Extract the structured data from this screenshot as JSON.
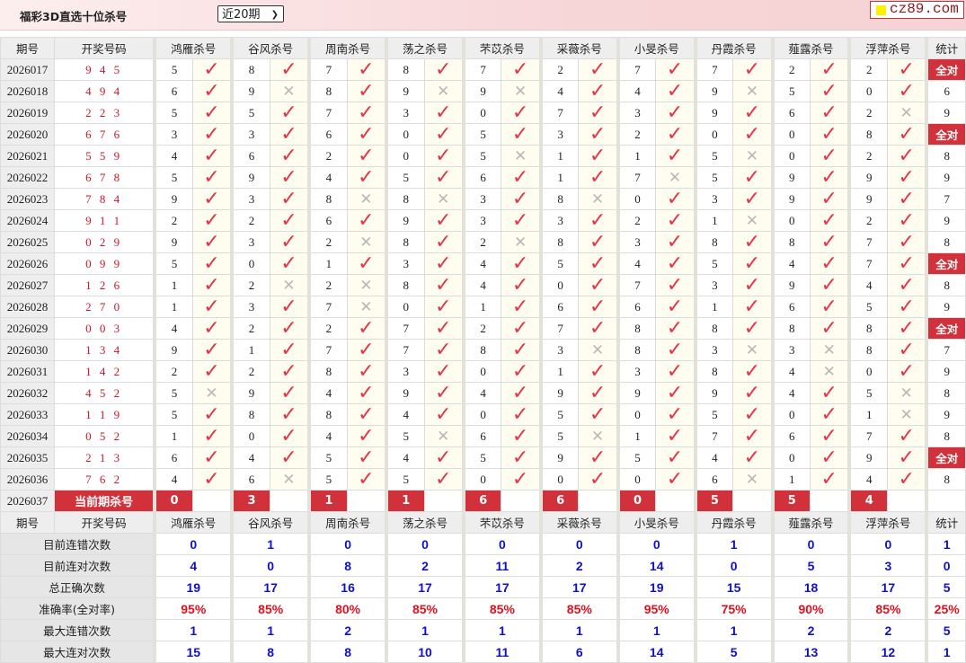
{
  "header": {
    "title": "福彩3D直选十位杀号",
    "period_select": "近20期",
    "logo": "cz89.com"
  },
  "columns": {
    "period": "期号",
    "draw": "开奖号码",
    "experts": [
      "鸿雁杀号",
      "谷风杀号",
      "周南杀号",
      "荡之杀号",
      "芣苡杀号",
      "采薇杀号",
      "小旻杀号",
      "丹霞杀号",
      "薤露杀号",
      "浮萍杀号"
    ],
    "stat": "统计"
  },
  "colors": {
    "check": "#e5334a",
    "cross": "#b8b8b8",
    "accent": "#d0313a",
    "stat_value": "#1010cc",
    "rate": "#e0101e"
  },
  "icons": {
    "hit": "check-icon",
    "miss": "cross-icon"
  },
  "rows": [
    {
      "period": "2026017",
      "draw": "9 4 5",
      "kills": [
        [
          5,
          1
        ],
        [
          8,
          1
        ],
        [
          7,
          1
        ],
        [
          8,
          1
        ],
        [
          7,
          1
        ],
        [
          2,
          1
        ],
        [
          7,
          1
        ],
        [
          7,
          1
        ],
        [
          2,
          1
        ],
        [
          2,
          1
        ]
      ],
      "stat": "全对"
    },
    {
      "period": "2026018",
      "draw": "4 9 4",
      "kills": [
        [
          6,
          1
        ],
        [
          9,
          0
        ],
        [
          8,
          1
        ],
        [
          9,
          0
        ],
        [
          9,
          0
        ],
        [
          4,
          1
        ],
        [
          4,
          1
        ],
        [
          9,
          0
        ],
        [
          5,
          1
        ],
        [
          0,
          1
        ]
      ],
      "stat": "6"
    },
    {
      "period": "2026019",
      "draw": "2 2 3",
      "kills": [
        [
          5,
          1
        ],
        [
          5,
          1
        ],
        [
          7,
          1
        ],
        [
          3,
          1
        ],
        [
          0,
          1
        ],
        [
          7,
          1
        ],
        [
          3,
          1
        ],
        [
          9,
          1
        ],
        [
          6,
          1
        ],
        [
          2,
          0
        ]
      ],
      "stat": "9"
    },
    {
      "period": "2026020",
      "draw": "6 7 6",
      "kills": [
        [
          3,
          1
        ],
        [
          3,
          1
        ],
        [
          6,
          1
        ],
        [
          0,
          1
        ],
        [
          5,
          1
        ],
        [
          3,
          1
        ],
        [
          2,
          1
        ],
        [
          0,
          1
        ],
        [
          0,
          1
        ],
        [
          8,
          1
        ]
      ],
      "stat": "全对"
    },
    {
      "period": "2026021",
      "draw": "5 5 9",
      "kills": [
        [
          4,
          1
        ],
        [
          6,
          1
        ],
        [
          2,
          1
        ],
        [
          0,
          1
        ],
        [
          5,
          0
        ],
        [
          1,
          1
        ],
        [
          1,
          1
        ],
        [
          5,
          0
        ],
        [
          0,
          1
        ],
        [
          2,
          1
        ]
      ],
      "stat": "8"
    },
    {
      "period": "2026022",
      "draw": "6 7 8",
      "kills": [
        [
          5,
          1
        ],
        [
          9,
          1
        ],
        [
          4,
          1
        ],
        [
          5,
          1
        ],
        [
          6,
          1
        ],
        [
          1,
          1
        ],
        [
          7,
          0
        ],
        [
          5,
          1
        ],
        [
          9,
          1
        ],
        [
          9,
          1
        ]
      ],
      "stat": "9"
    },
    {
      "period": "2026023",
      "draw": "7 8 4",
      "kills": [
        [
          9,
          1
        ],
        [
          3,
          1
        ],
        [
          8,
          0
        ],
        [
          8,
          0
        ],
        [
          3,
          1
        ],
        [
          8,
          0
        ],
        [
          0,
          1
        ],
        [
          3,
          1
        ],
        [
          9,
          1
        ],
        [
          9,
          1
        ]
      ],
      "stat": "7"
    },
    {
      "period": "2026024",
      "draw": "9 1 1",
      "kills": [
        [
          2,
          1
        ],
        [
          2,
          1
        ],
        [
          6,
          1
        ],
        [
          9,
          1
        ],
        [
          3,
          1
        ],
        [
          3,
          1
        ],
        [
          2,
          1
        ],
        [
          1,
          0
        ],
        [
          0,
          1
        ],
        [
          2,
          1
        ]
      ],
      "stat": "9"
    },
    {
      "period": "2026025",
      "draw": "0 2 9",
      "kills": [
        [
          9,
          1
        ],
        [
          3,
          1
        ],
        [
          2,
          0
        ],
        [
          8,
          1
        ],
        [
          2,
          0
        ],
        [
          8,
          1
        ],
        [
          3,
          1
        ],
        [
          8,
          1
        ],
        [
          8,
          1
        ],
        [
          7,
          1
        ]
      ],
      "stat": "8"
    },
    {
      "period": "2026026",
      "draw": "0 9 9",
      "kills": [
        [
          5,
          1
        ],
        [
          0,
          1
        ],
        [
          1,
          1
        ],
        [
          3,
          1
        ],
        [
          4,
          1
        ],
        [
          5,
          1
        ],
        [
          4,
          1
        ],
        [
          5,
          1
        ],
        [
          4,
          1
        ],
        [
          7,
          1
        ]
      ],
      "stat": "全对"
    },
    {
      "period": "2026027",
      "draw": "1 2 6",
      "kills": [
        [
          1,
          1
        ],
        [
          2,
          0
        ],
        [
          2,
          0
        ],
        [
          8,
          1
        ],
        [
          4,
          1
        ],
        [
          0,
          1
        ],
        [
          7,
          1
        ],
        [
          3,
          1
        ],
        [
          9,
          1
        ],
        [
          4,
          1
        ]
      ],
      "stat": "8"
    },
    {
      "period": "2026028",
      "draw": "2 7 0",
      "kills": [
        [
          1,
          1
        ],
        [
          3,
          1
        ],
        [
          7,
          0
        ],
        [
          0,
          1
        ],
        [
          1,
          1
        ],
        [
          6,
          1
        ],
        [
          6,
          1
        ],
        [
          1,
          1
        ],
        [
          6,
          1
        ],
        [
          5,
          1
        ]
      ],
      "stat": "9"
    },
    {
      "period": "2026029",
      "draw": "0 0 3",
      "kills": [
        [
          4,
          1
        ],
        [
          2,
          1
        ],
        [
          2,
          1
        ],
        [
          7,
          1
        ],
        [
          2,
          1
        ],
        [
          7,
          1
        ],
        [
          8,
          1
        ],
        [
          8,
          1
        ],
        [
          8,
          1
        ],
        [
          8,
          1
        ]
      ],
      "stat": "全对"
    },
    {
      "period": "2026030",
      "draw": "1 3 4",
      "kills": [
        [
          9,
          1
        ],
        [
          1,
          1
        ],
        [
          7,
          1
        ],
        [
          7,
          1
        ],
        [
          8,
          1
        ],
        [
          3,
          0
        ],
        [
          8,
          1
        ],
        [
          3,
          0
        ],
        [
          3,
          0
        ],
        [
          8,
          1
        ]
      ],
      "stat": "7"
    },
    {
      "period": "2026031",
      "draw": "1 4 2",
      "kills": [
        [
          2,
          1
        ],
        [
          2,
          1
        ],
        [
          8,
          1
        ],
        [
          3,
          1
        ],
        [
          0,
          1
        ],
        [
          1,
          1
        ],
        [
          3,
          1
        ],
        [
          8,
          1
        ],
        [
          4,
          0
        ],
        [
          0,
          1
        ]
      ],
      "stat": "9"
    },
    {
      "period": "2026032",
      "draw": "4 5 2",
      "kills": [
        [
          5,
          0
        ],
        [
          9,
          1
        ],
        [
          4,
          1
        ],
        [
          9,
          1
        ],
        [
          4,
          1
        ],
        [
          9,
          1
        ],
        [
          9,
          1
        ],
        [
          9,
          1
        ],
        [
          4,
          1
        ],
        [
          5,
          0
        ]
      ],
      "stat": "8"
    },
    {
      "period": "2026033",
      "draw": "1 1 9",
      "kills": [
        [
          5,
          1
        ],
        [
          8,
          1
        ],
        [
          8,
          1
        ],
        [
          4,
          1
        ],
        [
          0,
          1
        ],
        [
          5,
          1
        ],
        [
          0,
          1
        ],
        [
          5,
          1
        ],
        [
          0,
          1
        ],
        [
          1,
          0
        ]
      ],
      "stat": "9"
    },
    {
      "period": "2026034",
      "draw": "0 5 2",
      "kills": [
        [
          1,
          1
        ],
        [
          0,
          1
        ],
        [
          4,
          1
        ],
        [
          5,
          0
        ],
        [
          6,
          1
        ],
        [
          5,
          0
        ],
        [
          1,
          1
        ],
        [
          7,
          1
        ],
        [
          6,
          1
        ],
        [
          7,
          1
        ]
      ],
      "stat": "8"
    },
    {
      "period": "2026035",
      "draw": "2 1 3",
      "kills": [
        [
          6,
          1
        ],
        [
          4,
          1
        ],
        [
          5,
          1
        ],
        [
          4,
          1
        ],
        [
          5,
          1
        ],
        [
          9,
          1
        ],
        [
          5,
          1
        ],
        [
          4,
          1
        ],
        [
          0,
          1
        ],
        [
          9,
          1
        ]
      ],
      "stat": "全对"
    },
    {
      "period": "2026036",
      "draw": "7 6 2",
      "kills": [
        [
          4,
          1
        ],
        [
          6,
          0
        ],
        [
          5,
          1
        ],
        [
          5,
          1
        ],
        [
          0,
          1
        ],
        [
          0,
          1
        ],
        [
          0,
          1
        ],
        [
          6,
          0
        ],
        [
          1,
          1
        ],
        [
          4,
          1
        ]
      ],
      "stat": "8"
    }
  ],
  "current": {
    "period": "2026037",
    "label": "当前期杀号",
    "kills": [
      "0",
      "3",
      "1",
      "1",
      "6",
      "6",
      "0",
      "5",
      "5",
      "4"
    ]
  },
  "stats": [
    {
      "label": "目前连错次数",
      "values": [
        "0",
        "1",
        "0",
        "0",
        "0",
        "0",
        "0",
        "1",
        "0",
        "0",
        "1"
      ]
    },
    {
      "label": "目前连对次数",
      "values": [
        "4",
        "0",
        "8",
        "2",
        "11",
        "2",
        "14",
        "0",
        "5",
        "3",
        "0"
      ]
    },
    {
      "label": "总正确次数",
      "values": [
        "19",
        "17",
        "16",
        "17",
        "17",
        "17",
        "19",
        "15",
        "18",
        "17",
        "5"
      ]
    },
    {
      "label": "准确率(全对率)",
      "values": [
        "95%",
        "85%",
        "80%",
        "85%",
        "85%",
        "85%",
        "95%",
        "75%",
        "90%",
        "85%",
        "25%"
      ],
      "rate": true
    },
    {
      "label": "最大连错次数",
      "values": [
        "1",
        "1",
        "2",
        "1",
        "1",
        "1",
        "1",
        "1",
        "2",
        "2",
        "5"
      ]
    },
    {
      "label": "最大连对次数",
      "values": [
        "15",
        "8",
        "8",
        "10",
        "11",
        "6",
        "14",
        "5",
        "13",
        "12",
        "1"
      ]
    }
  ]
}
